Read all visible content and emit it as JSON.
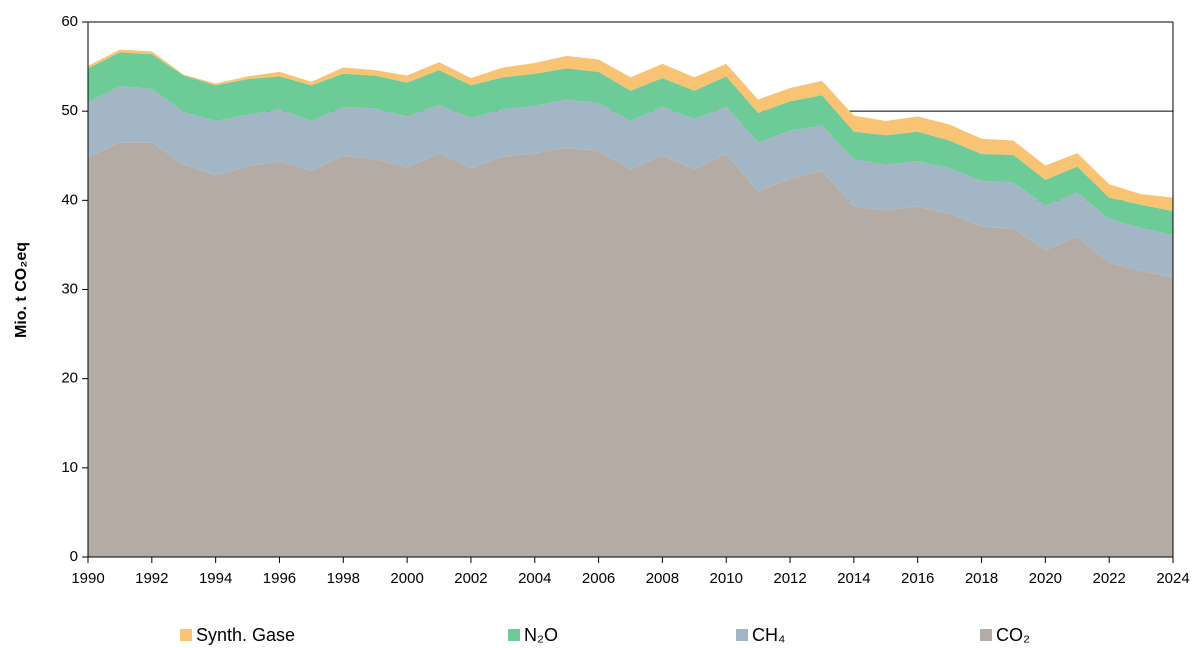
{
  "chart_data": {
    "type": "stacked_area",
    "y_label": "Mio. t CO₂eq",
    "x": [
      1990,
      1991,
      1992,
      1993,
      1994,
      1995,
      1996,
      1997,
      1998,
      1999,
      2000,
      2001,
      2002,
      2003,
      2004,
      2005,
      2006,
      2007,
      2008,
      2009,
      2010,
      2011,
      2012,
      2013,
      2014,
      2015,
      2016,
      2017,
      2018,
      2019,
      2020,
      2021,
      2022,
      2023,
      2024
    ],
    "series": [
      {
        "name": "CO₂",
        "color": "#b3aba4",
        "values": [
          44.8,
          46.5,
          46.5,
          44.0,
          42.8,
          43.8,
          44.4,
          43.3,
          45.0,
          44.6,
          43.7,
          45.3,
          43.6,
          44.9,
          45.3,
          45.9,
          45.5,
          43.5,
          45.0,
          43.5,
          45.2,
          41.0,
          42.4,
          43.3,
          39.3,
          38.9,
          39.3,
          38.5,
          37.1,
          36.8,
          34.4,
          35.9,
          33.0,
          32.1,
          31.3
        ]
      },
      {
        "name": "CH₄",
        "color": "#a3b6c5",
        "values": [
          6.2,
          6.3,
          6.0,
          5.9,
          6.1,
          5.8,
          5.8,
          5.6,
          5.5,
          5.7,
          5.7,
          5.4,
          5.6,
          5.3,
          5.3,
          5.4,
          5.4,
          5.4,
          5.5,
          5.6,
          5.3,
          5.5,
          5.4,
          5.1,
          5.3,
          5.1,
          5.1,
          5.1,
          5.1,
          5.2,
          5.0,
          5.0,
          4.9,
          4.8,
          4.8
        ]
      },
      {
        "name": "N₂O",
        "color": "#6dcb98",
        "values": [
          3.8,
          3.8,
          3.9,
          4.1,
          4.0,
          4.0,
          3.7,
          4.0,
          3.7,
          3.7,
          3.8,
          3.9,
          3.7,
          3.6,
          3.6,
          3.5,
          3.5,
          3.4,
          3.2,
          3.2,
          3.4,
          3.3,
          3.3,
          3.4,
          3.1,
          3.3,
          3.3,
          3.1,
          3.0,
          3.1,
          2.9,
          2.9,
          2.4,
          2.6,
          2.7
        ]
      },
      {
        "name": "Synth. Gase",
        "color": "#f9c374",
        "values": [
          0.3,
          0.3,
          0.3,
          0.1,
          0.2,
          0.3,
          0.5,
          0.4,
          0.7,
          0.6,
          0.8,
          0.9,
          0.8,
          1.1,
          1.2,
          1.4,
          1.4,
          1.5,
          1.6,
          1.5,
          1.4,
          1.5,
          1.5,
          1.6,
          1.8,
          1.6,
          1.7,
          1.8,
          1.7,
          1.6,
          1.6,
          1.5,
          1.5,
          1.2,
          1.5
        ]
      }
    ],
    "xlim": [
      1990,
      2024
    ],
    "xticks": [
      1990,
      1992,
      1994,
      1996,
      1998,
      2000,
      2002,
      2004,
      2006,
      2008,
      2010,
      2012,
      2014,
      2016,
      2018,
      2020,
      2022,
      2024
    ],
    "ylim": [
      0,
      60
    ],
    "yticks": [
      0,
      10,
      20,
      30,
      40,
      50,
      60
    ],
    "grid": true,
    "legend": "bottom"
  }
}
